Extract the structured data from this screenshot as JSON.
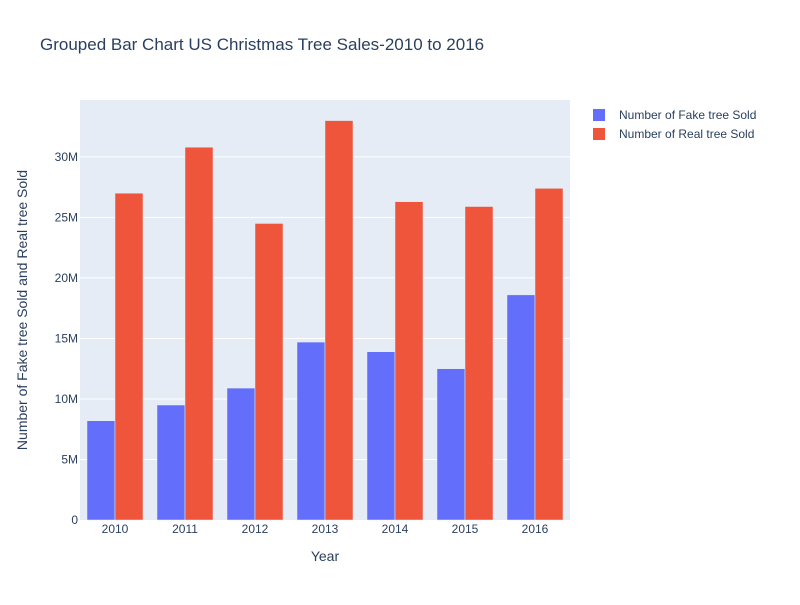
{
  "chart_data": {
    "type": "bar",
    "title": "Grouped Bar Chart US Christmas Tree Sales-2010 to 2016",
    "xlabel": "Year",
    "ylabel": "Number of Fake tree Sold and Real tree Sold",
    "categories": [
      "2010",
      "2011",
      "2012",
      "2013",
      "2014",
      "2015",
      "2016"
    ],
    "series": [
      {
        "name": "Number of Fake tree Sold",
        "color": "#636efa",
        "values": [
          8200000,
          9500000,
          10900000,
          14700000,
          13900000,
          12500000,
          18600000
        ]
      },
      {
        "name": "Number of Real tree Sold",
        "color": "#ef553b",
        "values": [
          27000000,
          30800000,
          24500000,
          33000000,
          26300000,
          25900000,
          27400000
        ]
      }
    ],
    "yticks": [
      0,
      5000000,
      10000000,
      15000000,
      20000000,
      25000000,
      30000000
    ],
    "ytick_labels": [
      "0",
      "5M",
      "10M",
      "15M",
      "20M",
      "25M",
      "30M"
    ],
    "ylim": [
      0,
      34700000
    ],
    "grid": true,
    "legend_position": "top-right",
    "plot_background": "#e5ecf6"
  }
}
